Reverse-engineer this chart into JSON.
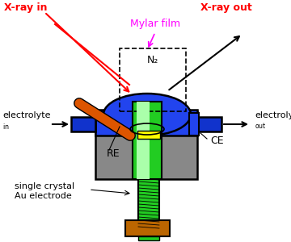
{
  "colors": {
    "blue_dome": "#2244ee",
    "gray_cell": "#888888",
    "green_stem": "#22cc22",
    "green_light": "#aaffaa",
    "yellow_top": "#ffff00",
    "orange_rod": "#dd5500",
    "brown_base": "#bb6600",
    "xray_red": "#ff0000",
    "mylar_magenta": "#ff00ff",
    "black": "#000000",
    "blue_port": "#1133cc",
    "white": "#ffffff"
  },
  "n2_text": "N₂",
  "xray_in_text": "X-ray in",
  "xray_out_text": "X-ray out",
  "mylar_text": "Mylar film",
  "ce_text": "CE",
  "re_text": "RE",
  "crystal_text": "single crystal\nAu electrode",
  "electrolyte_in": "electrolyte",
  "electrolyte_out": "electrolyte"
}
